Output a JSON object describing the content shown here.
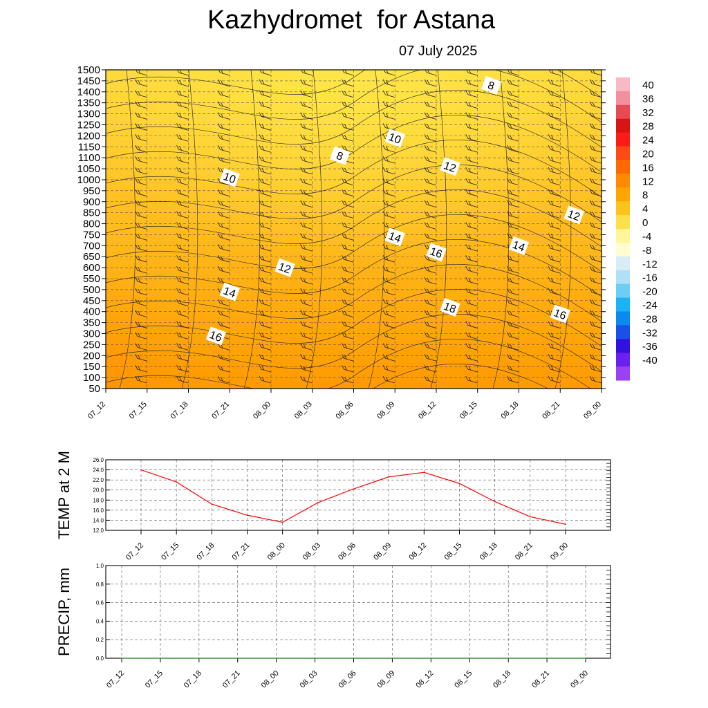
{
  "title": "Kazhydromet  for Astana",
  "date": "07 July 2025",
  "time_labels": [
    "07_12",
    "07_15",
    "07_18",
    "07_21",
    "08_00",
    "08_03",
    "08_06",
    "08_09",
    "08_12",
    "08_15",
    "08_18",
    "08_21",
    "09_00"
  ],
  "chart_data": [
    {
      "type": "heatmap",
      "variable": "temperature",
      "y_axis_levels": [
        50,
        100,
        150,
        200,
        250,
        300,
        350,
        400,
        450,
        500,
        550,
        600,
        650,
        700,
        750,
        800,
        850,
        900,
        950,
        1000,
        1050,
        1100,
        1150,
        1200,
        1250,
        1300,
        1350,
        1400,
        1450,
        1500
      ],
      "ylim": [
        50,
        1500
      ],
      "colorbar": {
        "ticks": [
          40,
          36,
          32,
          28,
          24,
          20,
          16,
          12,
          8,
          4,
          0,
          -4,
          -8,
          -12,
          -16,
          -20,
          -24,
          -28,
          -32,
          -36,
          -40
        ],
        "colors": [
          "#f9b8c6",
          "#f3909e",
          "#e84a55",
          "#d91414",
          "#ff1a1a",
          "#ff4a14",
          "#ff6a00",
          "#ff8a00",
          "#ffa500",
          "#ffc21a",
          "#ffe04a",
          "#fff59a",
          "#fffcd0",
          "#d8ecf5",
          "#b0e0f5",
          "#6ecdf5",
          "#1ab4f5",
          "#0a8aee",
          "#1a50e8",
          "#3210e0",
          "#6a20f0",
          "#9a40f5"
        ]
      },
      "contour_labels": [
        {
          "text": "8",
          "x": "08_05",
          "y": 1110
        },
        {
          "text": "8",
          "x": "08_16",
          "y": 1430
        },
        {
          "text": "10",
          "x": "07_21",
          "y": 1010
        },
        {
          "text": "10",
          "x": "08_09",
          "y": 1190
        },
        {
          "text": "12",
          "x": "08_01",
          "y": 600
        },
        {
          "text": "12",
          "x": "08_13",
          "y": 1060
        },
        {
          "text": "12",
          "x": "08_22",
          "y": 840
        },
        {
          "text": "14",
          "x": "07_21",
          "y": 490
        },
        {
          "text": "14",
          "x": "08_09",
          "y": 740
        },
        {
          "text": "14",
          "x": "08_18",
          "y": 700
        },
        {
          "text": "16",
          "x": "07_20",
          "y": 290
        },
        {
          "text": "16",
          "x": "08_12",
          "y": 670
        },
        {
          "text": "16",
          "x": "08_21",
          "y": 390
        },
        {
          "text": "18",
          "x": "08_13",
          "y": 420
        }
      ]
    },
    {
      "type": "line",
      "ylabel": "TEMP at 2 M",
      "ylim": [
        12,
        26
      ],
      "y_ticks": [
        "12.0",
        "14.0",
        "16.0",
        "18.0",
        "20.0",
        "22.0",
        "24.0",
        "26.0"
      ],
      "series": [
        {
          "color": "#ff0000",
          "values": [
            24.0,
            21.6,
            17.2,
            15.0,
            13.6,
            17.5,
            20.2,
            22.6,
            23.5,
            21.3,
            17.7,
            14.7,
            13.2
          ]
        }
      ]
    },
    {
      "type": "line",
      "ylabel": "PRECIP, mm",
      "ylim": [
        0,
        1
      ],
      "y_ticks": [
        "0.0",
        "0.2",
        "0.4",
        "0.6",
        "0.8",
        "1.0"
      ],
      "series": [
        {
          "color": "#228b22",
          "values": [
            0,
            0,
            0,
            0,
            0,
            0,
            0,
            0,
            0,
            0,
            0,
            0,
            0
          ]
        }
      ]
    }
  ]
}
